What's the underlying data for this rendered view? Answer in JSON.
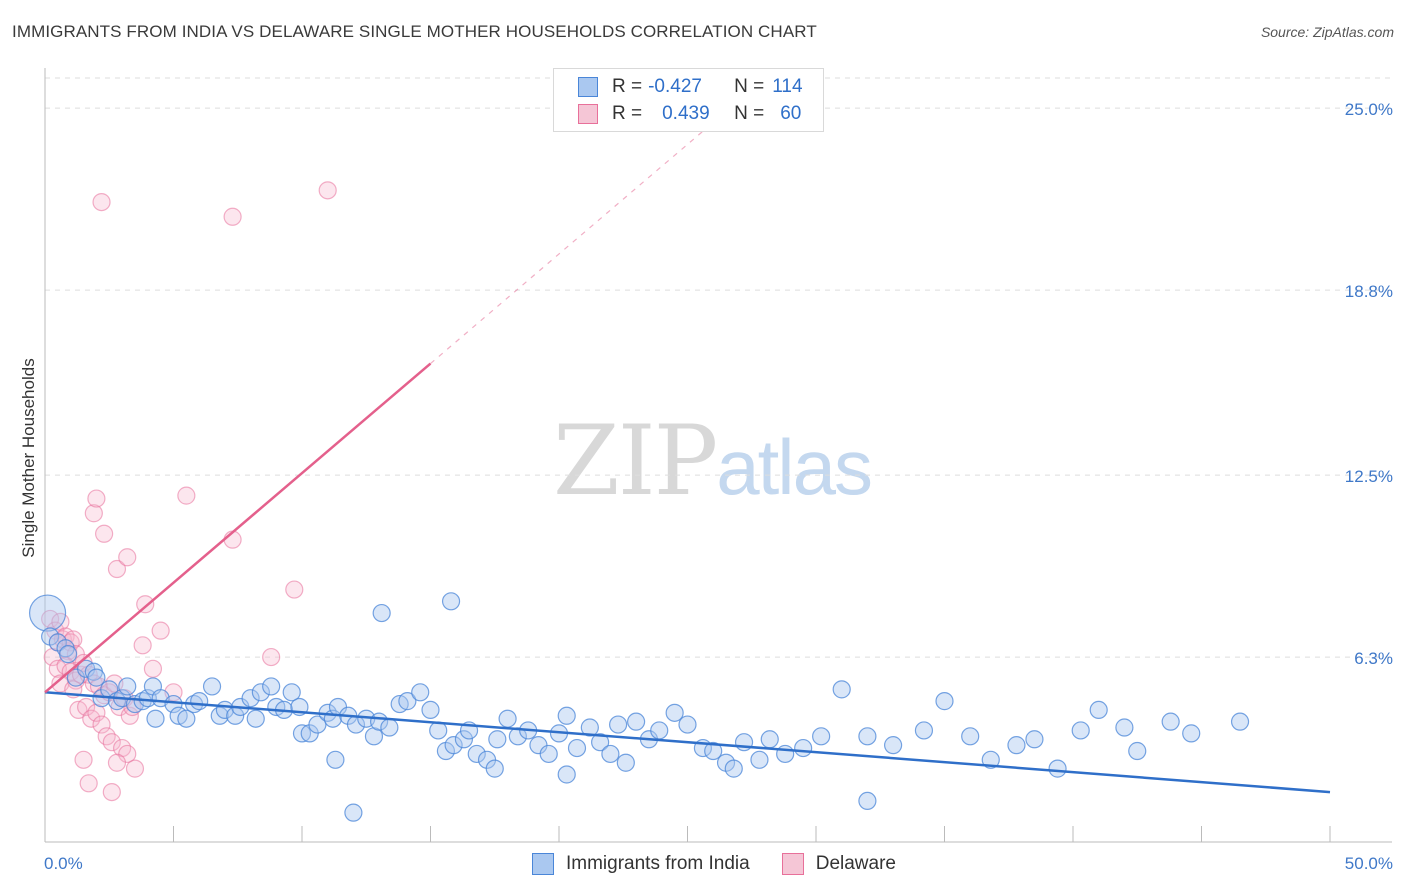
{
  "title": "IMMIGRANTS FROM INDIA VS DELAWARE SINGLE MOTHER HOUSEHOLDS CORRELATION CHART",
  "source": "Source: ZipAtlas.com",
  "watermark": {
    "zip": "ZIP",
    "atlas": "atlas"
  },
  "legend": {
    "india": {
      "r_label": "R =",
      "r": "-0.427",
      "n_label": "N =",
      "n": "114"
    },
    "delaware": {
      "r_label": "R =",
      "r": "0.439",
      "n_label": "N =",
      "n": "60"
    }
  },
  "bottom_legend": {
    "india": "Immigrants from India",
    "delaware": "Delaware"
  },
  "colors": {
    "india": "#4a86d8",
    "india_fill": "#aac8f0",
    "delaware": "#e8709a",
    "delaware_fill": "#f5b8cd",
    "india_line": "#2f6fc9",
    "delaware_line": "#e4608c",
    "tick_text": "#3f78c8"
  },
  "chart_data": {
    "type": "scatter",
    "title": "IMMIGRANTS FROM INDIA VS DELAWARE SINGLE MOTHER HOUSEHOLDS CORRELATION CHART",
    "xlabel": "",
    "ylabel": "Single Mother Households",
    "xlim": [
      0,
      50
    ],
    "ylim": [
      0,
      26.3
    ],
    "x_tick_labels": [
      "0.0%",
      "50.0%"
    ],
    "y_ticks": [
      6.3,
      12.5,
      18.8,
      25.0
    ],
    "y_tick_labels": [
      "6.3%",
      "12.5%",
      "18.8%",
      "25.0%"
    ],
    "grid": true,
    "legend_position": "top-center",
    "series": [
      {
        "name": "Immigrants from India",
        "stats": {
          "R": -0.427,
          "N": 114
        },
        "trend": {
          "x": [
            0,
            50
          ],
          "y": [
            5.1,
            1.7
          ]
        },
        "points": [
          [
            0.1,
            7.8
          ],
          [
            0.2,
            7.0
          ],
          [
            0.5,
            6.8
          ],
          [
            0.8,
            6.6
          ],
          [
            0.9,
            6.4
          ],
          [
            1.2,
            5.6
          ],
          [
            1.6,
            5.9
          ],
          [
            1.9,
            5.8
          ],
          [
            2.0,
            5.6
          ],
          [
            2.2,
            4.9
          ],
          [
            2.5,
            5.2
          ],
          [
            2.8,
            4.8
          ],
          [
            3.0,
            4.9
          ],
          [
            3.2,
            5.3
          ],
          [
            3.5,
            4.7
          ],
          [
            3.8,
            4.8
          ],
          [
            4.0,
            4.9
          ],
          [
            4.2,
            5.3
          ],
          [
            4.3,
            4.2
          ],
          [
            4.5,
            4.9
          ],
          [
            5.0,
            4.7
          ],
          [
            5.2,
            4.3
          ],
          [
            5.5,
            4.2
          ],
          [
            5.8,
            4.7
          ],
          [
            6.0,
            4.8
          ],
          [
            6.5,
            5.3
          ],
          [
            6.8,
            4.3
          ],
          [
            7.0,
            4.5
          ],
          [
            7.4,
            4.3
          ],
          [
            7.6,
            4.6
          ],
          [
            8.0,
            4.9
          ],
          [
            8.2,
            4.2
          ],
          [
            8.4,
            5.1
          ],
          [
            8.8,
            5.3
          ],
          [
            9.0,
            4.6
          ],
          [
            9.3,
            4.5
          ],
          [
            9.6,
            5.1
          ],
          [
            9.9,
            4.6
          ],
          [
            10.0,
            3.7
          ],
          [
            10.3,
            3.7
          ],
          [
            10.6,
            4.0
          ],
          [
            11.0,
            4.4
          ],
          [
            11.2,
            4.2
          ],
          [
            11.4,
            4.6
          ],
          [
            11.8,
            4.3
          ],
          [
            12.1,
            4.0
          ],
          [
            12.5,
            4.2
          ],
          [
            12.8,
            3.6
          ],
          [
            13.0,
            4.1
          ],
          [
            13.4,
            3.9
          ],
          [
            13.8,
            4.7
          ],
          [
            14.1,
            4.8
          ],
          [
            14.6,
            5.1
          ],
          [
            15.0,
            4.5
          ],
          [
            15.3,
            3.8
          ],
          [
            15.6,
            3.1
          ],
          [
            15.9,
            3.3
          ],
          [
            16.3,
            3.5
          ],
          [
            16.5,
            3.8
          ],
          [
            16.8,
            3.0
          ],
          [
            17.2,
            2.8
          ],
          [
            17.6,
            3.5
          ],
          [
            18.0,
            4.2
          ],
          [
            18.4,
            3.6
          ],
          [
            18.8,
            3.8
          ],
          [
            19.2,
            3.3
          ],
          [
            19.6,
            3.0
          ],
          [
            20.0,
            3.7
          ],
          [
            20.3,
            4.3
          ],
          [
            20.7,
            3.2
          ],
          [
            21.2,
            3.9
          ],
          [
            21.6,
            3.4
          ],
          [
            22.0,
            3.0
          ],
          [
            22.3,
            4.0
          ],
          [
            22.6,
            2.7
          ],
          [
            23.0,
            4.1
          ],
          [
            23.5,
            3.5
          ],
          [
            23.9,
            3.8
          ],
          [
            24.5,
            4.4
          ],
          [
            25.0,
            4.0
          ],
          [
            25.6,
            3.2
          ],
          [
            26.0,
            3.1
          ],
          [
            26.5,
            2.7
          ],
          [
            27.2,
            3.4
          ],
          [
            27.8,
            2.8
          ],
          [
            28.2,
            3.5
          ],
          [
            28.8,
            3.0
          ],
          [
            29.5,
            3.2
          ],
          [
            30.2,
            3.6
          ],
          [
            31.0,
            5.2
          ],
          [
            32.0,
            3.6
          ],
          [
            33.0,
            3.3
          ],
          [
            34.2,
            3.8
          ],
          [
            35.0,
            4.8
          ],
          [
            36.0,
            3.6
          ],
          [
            36.8,
            2.8
          ],
          [
            37.8,
            3.3
          ],
          [
            38.5,
            3.5
          ],
          [
            39.4,
            2.5
          ],
          [
            40.3,
            3.8
          ],
          [
            41.0,
            4.5
          ],
          [
            42.0,
            3.9
          ],
          [
            42.5,
            3.1
          ],
          [
            43.8,
            4.1
          ],
          [
            44.6,
            3.7
          ],
          [
            46.5,
            4.1
          ],
          [
            13.1,
            7.8
          ],
          [
            15.8,
            8.2
          ],
          [
            11.3,
            2.8
          ],
          [
            12.0,
            1.0
          ],
          [
            20.3,
            2.3
          ],
          [
            32.0,
            1.4
          ],
          [
            17.5,
            2.5
          ],
          [
            26.8,
            2.5
          ]
        ]
      },
      {
        "name": "Delaware",
        "stats": {
          "R": 0.439,
          "N": 60
        },
        "trend": {
          "x": [
            0,
            15
          ],
          "y": [
            5.1,
            16.3
          ]
        },
        "points": [
          [
            0.2,
            7.6
          ],
          [
            0.4,
            7.2
          ],
          [
            0.5,
            6.8
          ],
          [
            0.6,
            7.5
          ],
          [
            0.7,
            6.9
          ],
          [
            0.8,
            7.0
          ],
          [
            0.9,
            6.5
          ],
          [
            1.0,
            6.8
          ],
          [
            1.1,
            6.9
          ],
          [
            1.2,
            6.4
          ],
          [
            0.3,
            6.3
          ],
          [
            0.5,
            5.9
          ],
          [
            0.8,
            6.0
          ],
          [
            1.0,
            5.8
          ],
          [
            1.2,
            5.5
          ],
          [
            1.4,
            5.7
          ],
          [
            1.5,
            6.1
          ],
          [
            1.7,
            5.7
          ],
          [
            1.9,
            5.4
          ],
          [
            2.1,
            5.3
          ],
          [
            2.3,
            5.0
          ],
          [
            2.5,
            5.1
          ],
          [
            2.7,
            5.4
          ],
          [
            2.9,
            4.6
          ],
          [
            3.1,
            4.9
          ],
          [
            3.3,
            4.3
          ],
          [
            3.4,
            4.6
          ],
          [
            0.6,
            5.4
          ],
          [
            1.1,
            5.2
          ],
          [
            1.3,
            4.5
          ],
          [
            1.6,
            4.6
          ],
          [
            1.8,
            4.2
          ],
          [
            2.0,
            4.4
          ],
          [
            2.2,
            4.0
          ],
          [
            2.4,
            3.6
          ],
          [
            2.6,
            3.4
          ],
          [
            3.0,
            3.2
          ],
          [
            3.2,
            3.0
          ],
          [
            3.5,
            2.5
          ],
          [
            2.8,
            2.7
          ],
          [
            1.5,
            2.8
          ],
          [
            1.7,
            2.0
          ],
          [
            2.6,
            1.7
          ],
          [
            1.9,
            11.2
          ],
          [
            2.0,
            11.7
          ],
          [
            2.3,
            10.5
          ],
          [
            2.8,
            9.3
          ],
          [
            3.2,
            9.7
          ],
          [
            3.9,
            8.1
          ],
          [
            4.2,
            5.9
          ],
          [
            4.5,
            7.2
          ],
          [
            5.0,
            5.1
          ],
          [
            5.5,
            11.8
          ],
          [
            7.3,
            10.3
          ],
          [
            8.8,
            6.3
          ],
          [
            9.7,
            8.6
          ],
          [
            2.2,
            21.8
          ],
          [
            7.3,
            21.3
          ],
          [
            11.0,
            22.2
          ],
          [
            3.8,
            6.7
          ]
        ]
      }
    ]
  }
}
